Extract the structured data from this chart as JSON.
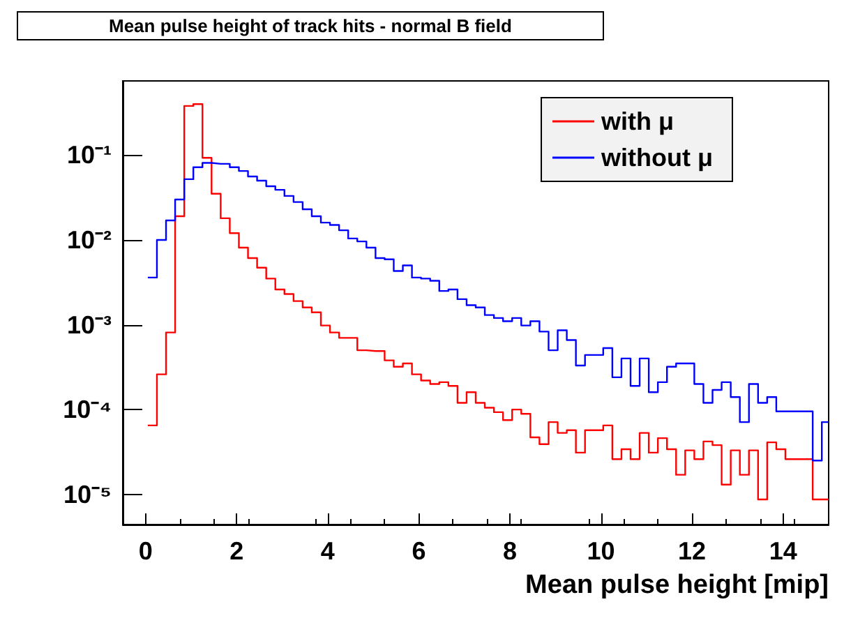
{
  "chart_data": {
    "type": "histogram",
    "title": "Mean pulse height of track hits - normal B field",
    "xlabel": "Mean pulse height [mip]",
    "bins": [
      0.05,
      0.25,
      0.45,
      0.65,
      0.85,
      1.05,
      1.25,
      1.45,
      1.65,
      1.85,
      2.05,
      2.25,
      2.45,
      2.65,
      2.85,
      3.05,
      3.25,
      3.45,
      3.65,
      3.85,
      4.05,
      4.25,
      4.45,
      4.65,
      4.85,
      5.05,
      5.25,
      5.45,
      5.65,
      5.85,
      6.05,
      6.25,
      6.45,
      6.65,
      6.85,
      7.05,
      7.25,
      7.45,
      7.65,
      7.85,
      8.05,
      8.25,
      8.45,
      8.65,
      8.85,
      9.05,
      9.25,
      9.45,
      9.65,
      9.85,
      10.05,
      10.25,
      10.45,
      10.65,
      10.85,
      11.05,
      11.25,
      11.45,
      11.65,
      11.85,
      12.05,
      12.25,
      12.45,
      12.65,
      12.85,
      13.05,
      13.25,
      13.45,
      13.65,
      13.85,
      14.05,
      14.25,
      14.45,
      14.65,
      14.85,
      15.0
    ],
    "series": [
      {
        "name": "with μ",
        "color": "#ff0000",
        "values": [
          6.5e-05,
          0.00026,
          0.00081,
          0.019,
          0.38,
          0.4,
          0.093,
          0.035,
          0.018,
          0.012,
          0.0081,
          0.0061,
          0.0047,
          0.0035,
          0.0026,
          0.0023,
          0.0019,
          0.0016,
          0.0014,
          0.00098,
          0.00081,
          0.0007,
          0.0007,
          0.0005,
          0.00049,
          0.00049,
          0.00038,
          0.00032,
          0.00035,
          0.00026,
          0.00022,
          0.0002,
          0.00021,
          0.00019,
          0.00012,
          0.00016,
          0.00012,
          0.000105,
          9.3e-05,
          7.5e-05,
          0.0001,
          8.9e-05,
          4.7e-05,
          3.9e-05,
          7.1e-05,
          5.3e-05,
          5.7e-05,
          3.1e-05,
          5.7e-05,
          5.7e-05,
          6.5e-05,
          2.6e-05,
          3.4e-05,
          2.6e-05,
          5.3e-05,
          3.1e-05,
          4.6e-05,
          3.4e-05,
          1.7e-05,
          3.3e-05,
          2.6e-05,
          4.2e-05,
          3.8e-05,
          1.3e-05,
          3.3e-05,
          1.7e-05,
          3.3e-05,
          8.7e-06,
          4.1e-05,
          3.4e-05,
          2.6e-05,
          2.6e-05,
          2.6e-05,
          8.7e-06,
          8.7e-06
        ]
      },
      {
        "name": "without μ",
        "color": "#0000ff",
        "values": [
          0.0036,
          0.01,
          0.017,
          0.03,
          0.052,
          0.072,
          0.081,
          0.079,
          0.079,
          0.072,
          0.065,
          0.056,
          0.05,
          0.043,
          0.039,
          0.033,
          0.028,
          0.023,
          0.019,
          0.016,
          0.015,
          0.013,
          0.0104,
          0.0096,
          0.0081,
          0.0061,
          0.0059,
          0.0043,
          0.005,
          0.0036,
          0.0035,
          0.0033,
          0.0025,
          0.0026,
          0.002,
          0.0017,
          0.0016,
          0.0013,
          0.0012,
          0.0011,
          0.0012,
          0.00098,
          0.0011,
          0.00083,
          0.0005,
          0.00086,
          0.00066,
          0.00033,
          0.00044,
          0.00044,
          0.00053,
          0.00024,
          0.0004,
          0.00019,
          0.0004,
          0.00016,
          0.00021,
          0.00032,
          0.00035,
          0.00035,
          0.0002,
          0.00012,
          0.00017,
          0.00021,
          0.00014,
          7.1e-05,
          0.0002,
          0.00012,
          0.00014,
          9.5e-05,
          9.5e-05,
          9.5e-05,
          9.5e-05,
          2.5e-05,
          7.1e-05
        ]
      }
    ],
    "xlim": [
      -0.5,
      15
    ],
    "xticks": [
      0,
      2,
      4,
      6,
      8,
      10,
      12,
      14
    ],
    "ylim": [
      4.4e-06,
      0.75
    ],
    "yticks": [
      {
        "value": 1e-05,
        "label": "10⁻⁵"
      },
      {
        "value": 0.0001,
        "label": "10⁻⁴"
      },
      {
        "value": 0.001,
        "label": "10⁻³"
      },
      {
        "value": 0.01,
        "label": "10⁻²"
      },
      {
        "value": 0.1,
        "label": "10⁻¹"
      }
    ],
    "log": "y",
    "grid": false,
    "legend": "top right"
  }
}
